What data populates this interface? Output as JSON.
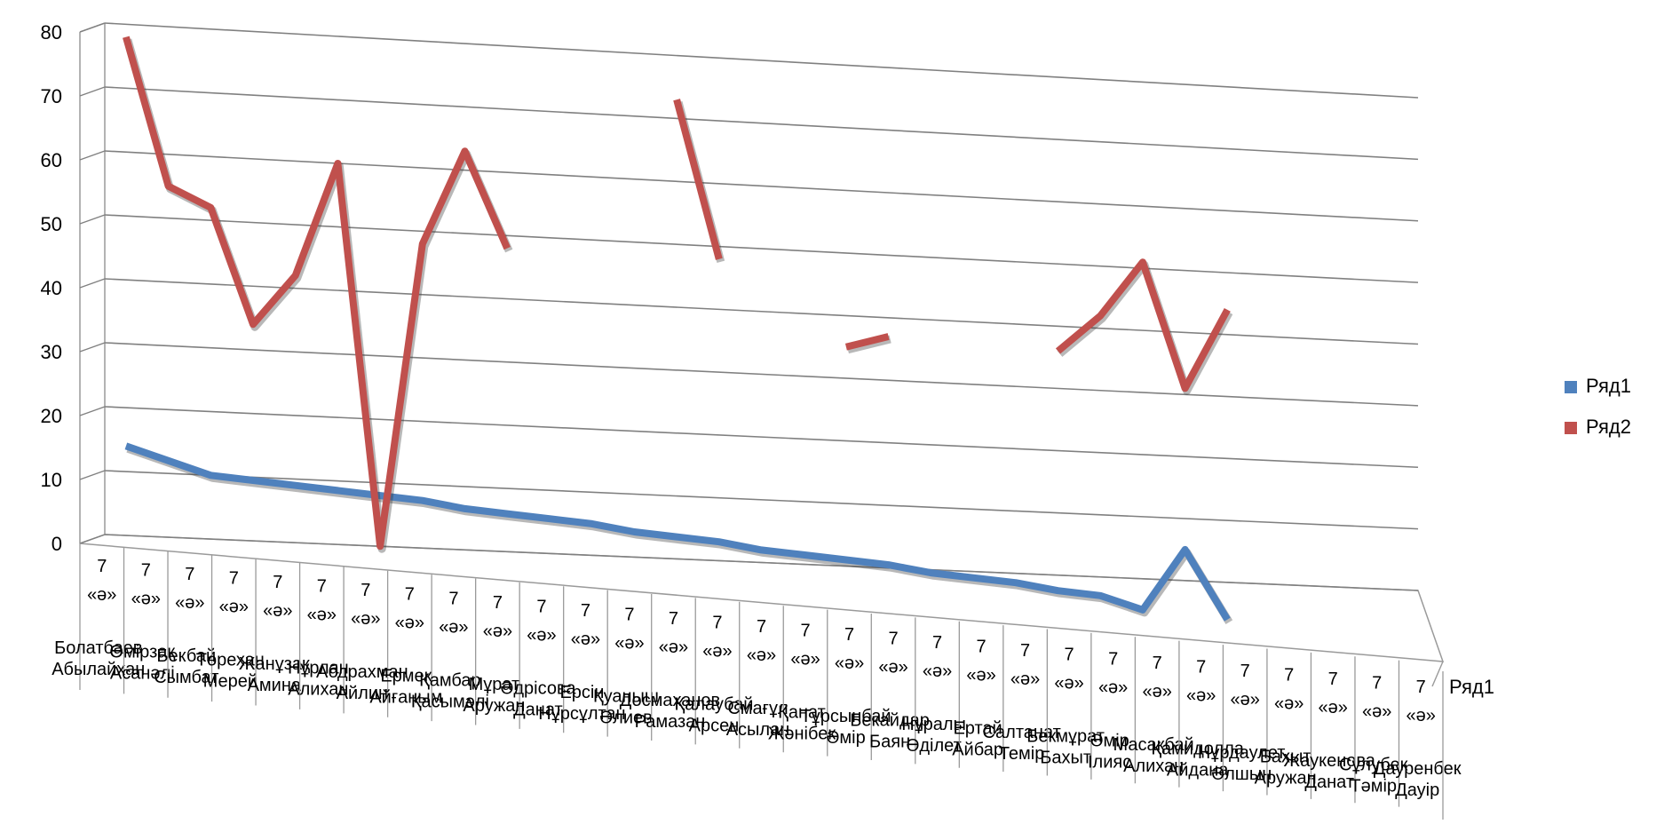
{
  "chart_data": {
    "type": "line",
    "view": "3d",
    "ylim": [
      0,
      80
    ],
    "yticks": [
      "0",
      "10",
      "20",
      "30",
      "40",
      "50",
      "60",
      "70",
      "80"
    ],
    "grid": true,
    "legend": "right",
    "depth_axis_label": "Ряд1",
    "categories": [
      {
        "class": "7 «ә»",
        "name": "Болатбаев Абылайхан"
      },
      {
        "class": "7 «ә»",
        "name": "Өмірзақ Асанәлі"
      },
      {
        "class": "7 «ә»",
        "name": "Бекбай Сымбат"
      },
      {
        "class": "7 «ә»",
        "name": "Төрехан Мерей"
      },
      {
        "class": "7 «ә»",
        "name": "Жанұзақ Амина"
      },
      {
        "class": "7 «ә»",
        "name": "Нұрлан Алихан"
      },
      {
        "class": "7 «ә»",
        "name": "Абдрахман Айлин"
      },
      {
        "class": "7 «ә»",
        "name": "Ермек Айғаным"
      },
      {
        "class": "7 «ә»",
        "name": "Қамбар Қасымәлі"
      },
      {
        "class": "7 «ә»",
        "name": "Мұрат Аружан"
      },
      {
        "class": "7 «ә»",
        "name": "Әдрісова Данат"
      },
      {
        "class": "7 «ә»",
        "name": "Ерсін Нұрсұлтан"
      },
      {
        "class": "7 «ә»",
        "name": "Қуаныш Әлиев"
      },
      {
        "class": "7 «ә»",
        "name": "Досмаханов Рамазан"
      },
      {
        "class": "7 «ә»",
        "name": "Қалаубай Арсен"
      },
      {
        "class": "7 «ә»",
        "name": "Смағұл Асылан"
      },
      {
        "class": "7 «ә»",
        "name": "Қанат Жәнібек"
      },
      {
        "class": "7 «ә»",
        "name": "Тұрсынбай Әмір"
      },
      {
        "class": "7 «ә»",
        "name": "Бекайдар Баян"
      },
      {
        "class": "7 «ә»",
        "name": "Нұралы Әділет"
      },
      {
        "class": "7 «ә»",
        "name": "Ертай Айбар"
      },
      {
        "class": "7 «ә»",
        "name": "Салтанат Темір"
      },
      {
        "class": "7 «ә»",
        "name": "Бекмұрат Бахыт"
      },
      {
        "class": "7 «ә»",
        "name": "Әмір Ілияс"
      },
      {
        "class": "7 «ә»",
        "name": "Масақбай Алихан"
      },
      {
        "class": "7 «ә»",
        "name": "Қамидолла Айдана"
      },
      {
        "class": "7 «ә»",
        "name": "Нұрдаулет Әлшын"
      },
      {
        "class": "7 «ә»",
        "name": "Бахыт Аружан"
      },
      {
        "class": "7 «ә»",
        "name": "Жаукенова Данат"
      },
      {
        "class": "7 «ә»",
        "name": "Сұлубек Тәмір"
      },
      {
        "class": "7 «ә»",
        "name": "Дауренбек Дауір"
      }
    ],
    "series": [
      {
        "name": "Ряд1",
        "color": "#4F81BD",
        "values": [
          14,
          12,
          10,
          9.5,
          9,
          8.5,
          8,
          7.5,
          6.5,
          6,
          5.5,
          5,
          4,
          3.5,
          3,
          2,
          1.5,
          1,
          0.5,
          -0.5,
          -1,
          -1.5,
          -2.5,
          -3,
          -5,
          5,
          -6,
          null,
          null,
          null,
          null
        ]
      },
      {
        "name": "Ряд2",
        "color": "#C0504D",
        "values": [
          78,
          55,
          52,
          34,
          42,
          60,
          0,
          48,
          63,
          48,
          null,
          null,
          null,
          73,
          48,
          null,
          null,
          35,
          37,
          null,
          null,
          null,
          36,
          42,
          51,
          31,
          44,
          null,
          null,
          null,
          null
        ]
      }
    ]
  }
}
